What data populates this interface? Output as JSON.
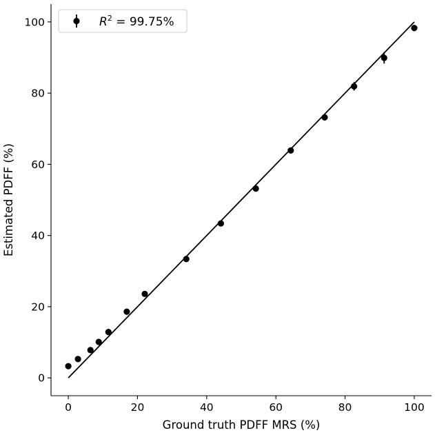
{
  "chart_data": {
    "type": "scatter",
    "xlabel": "Ground truth PDFF MRS (%)",
    "ylabel": "Estimated PDFF (%)",
    "xlim": [
      -5,
      105
    ],
    "ylim": [
      -5,
      105
    ],
    "x_ticks": [
      0,
      20,
      40,
      60,
      80,
      100
    ],
    "y_ticks": [
      0,
      20,
      40,
      60,
      80,
      100
    ],
    "x_tick_labels": [
      "0",
      "20",
      "40",
      "60",
      "80",
      "100"
    ],
    "y_tick_labels": [
      "0",
      "20",
      "40",
      "60",
      "80",
      "100"
    ],
    "grid": false,
    "spines": "left-bottom",
    "legend": {
      "placement": "top-left",
      "entry_prefix": "R",
      "entry_sup": "2",
      "entry_suffix": " = 99.75%",
      "marker": "errorbar-dot"
    },
    "identity_line": {
      "from": [
        0,
        0
      ],
      "to": [
        100,
        100
      ],
      "color": "#000000"
    },
    "marker_color": "#000000",
    "points": [
      {
        "x": 0.0,
        "y": 3.3,
        "err": 0.5
      },
      {
        "x": 2.8,
        "y": 5.3,
        "err": 0.5
      },
      {
        "x": 6.4,
        "y": 7.8,
        "err": 0.5
      },
      {
        "x": 8.8,
        "y": 10.1,
        "err": 0.5
      },
      {
        "x": 11.6,
        "y": 12.9,
        "err": 0.5
      },
      {
        "x": 16.9,
        "y": 18.6,
        "err": 0.5
      },
      {
        "x": 22.1,
        "y": 23.6,
        "err": 0.5
      },
      {
        "x": 34.1,
        "y": 33.4,
        "err": 0.5
      },
      {
        "x": 44.1,
        "y": 43.4,
        "err": 0.5
      },
      {
        "x": 54.2,
        "y": 53.2,
        "err": 0.5
      },
      {
        "x": 64.3,
        "y": 63.9,
        "err": 0.5
      },
      {
        "x": 74.1,
        "y": 73.2,
        "err": 0.9
      },
      {
        "x": 82.6,
        "y": 81.9,
        "err": 1.2
      },
      {
        "x": 91.3,
        "y": 89.9,
        "err": 1.6
      },
      {
        "x": 100.0,
        "y": 98.3,
        "err": 0.5
      }
    ]
  }
}
